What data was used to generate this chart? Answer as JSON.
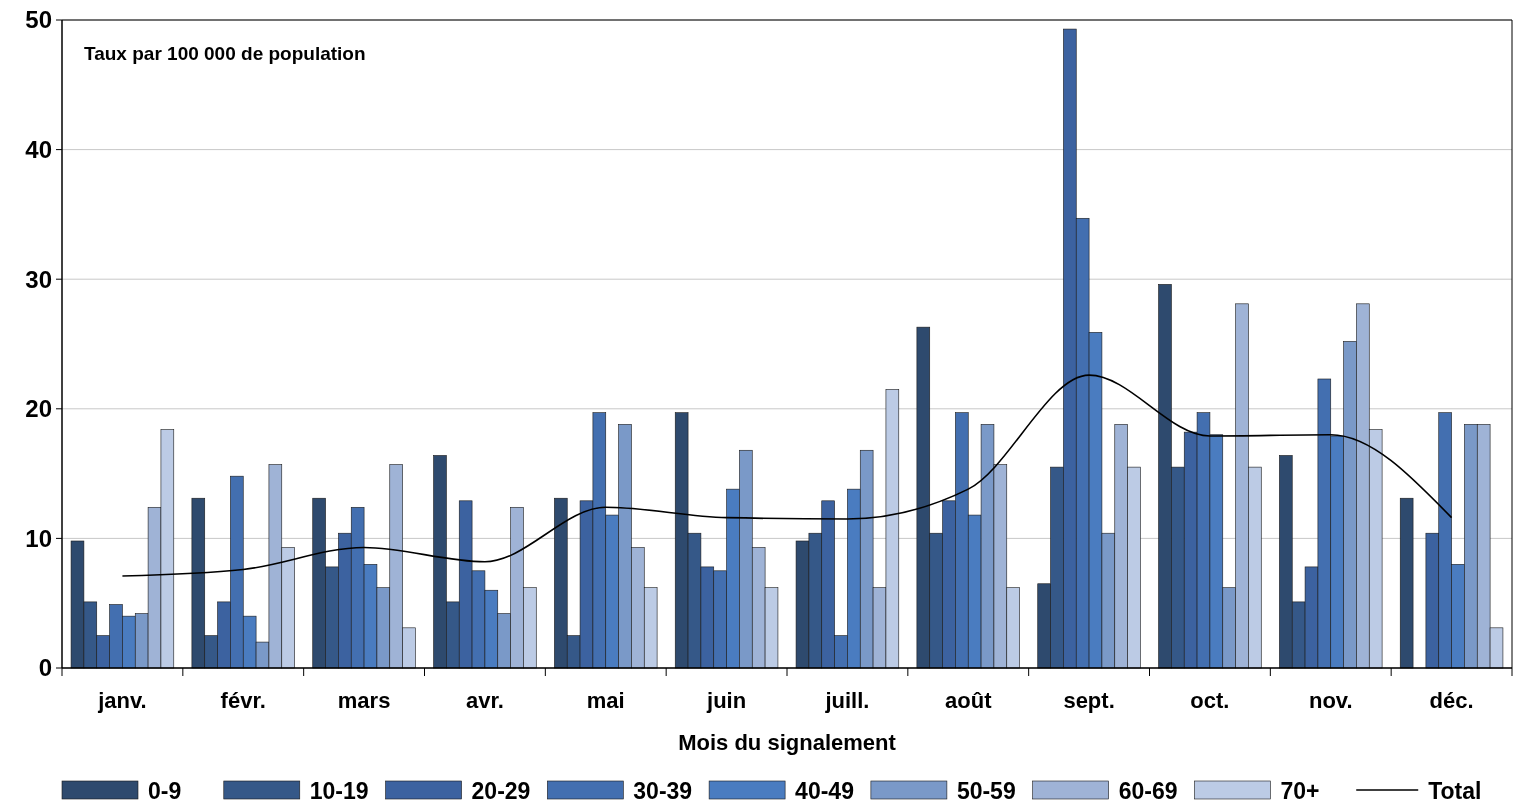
{
  "chart_data": {
    "type": "bar",
    "xlabel": "Mois du signalement",
    "annotations": [
      "Taux par 100 000 de population"
    ],
    "categories": [
      "janv.",
      "févr.",
      "mars",
      "avr.",
      "mai",
      "juin",
      "juill.",
      "août",
      "sept.",
      "oct.",
      "nov.",
      "déc."
    ],
    "ylim": [
      0,
      50
    ],
    "yticks": [
      0,
      10,
      20,
      30,
      40,
      50
    ],
    "grid": "y",
    "legend": "bottom",
    "series": [
      {
        "name": "0-9",
        "color": "#2e4a6e",
        "values": [
          9.8,
          13.1,
          13.1,
          16.4,
          13.1,
          19.7,
          9.8,
          26.3,
          6.5,
          29.6,
          16.4,
          13.1
        ]
      },
      {
        "name": "10-19",
        "color": "#355888",
        "values": [
          5.1,
          2.5,
          7.8,
          5.1,
          2.5,
          10.4,
          10.4,
          10.4,
          15.5,
          15.5,
          5.1,
          null
        ]
      },
      {
        "name": "20-29",
        "color": "#3c62a0",
        "values": [
          2.5,
          5.1,
          10.4,
          12.9,
          12.9,
          7.8,
          12.9,
          12.9,
          49.3,
          18.2,
          7.8,
          10.4
        ]
      },
      {
        "name": "30-39",
        "color": "#436fb0",
        "values": [
          4.9,
          14.8,
          12.4,
          7.5,
          19.7,
          7.5,
          2.5,
          19.7,
          34.7,
          19.7,
          22.3,
          19.7
        ]
      },
      {
        "name": "40-49",
        "color": "#4a7cc0",
        "values": [
          4.0,
          4.0,
          8.0,
          6.0,
          11.8,
          13.8,
          13.8,
          11.8,
          25.9,
          18.0,
          17.9,
          8.0
        ]
      },
      {
        "name": "50-59",
        "color": "#7a99c8",
        "values": [
          4.2,
          2.0,
          6.2,
          4.2,
          18.8,
          16.8,
          16.8,
          18.8,
          10.4,
          6.2,
          25.2,
          18.8
        ]
      },
      {
        "name": "60-69",
        "color": "#9fb3d6",
        "values": [
          12.4,
          15.7,
          15.7,
          12.4,
          9.3,
          9.3,
          6.2,
          15.7,
          18.8,
          28.1,
          28.1,
          18.8
        ]
      },
      {
        "name": "70+",
        "color": "#bccbe5",
        "values": [
          18.4,
          9.3,
          3.1,
          6.2,
          6.2,
          6.2,
          21.5,
          6.2,
          15.5,
          15.5,
          18.4,
          3.1
        ]
      },
      {
        "name": "Total",
        "type": "line",
        "color": "#000000",
        "values": [
          7.1,
          7.6,
          9.3,
          8.2,
          12.4,
          11.6,
          11.5,
          13.8,
          22.6,
          17.9,
          18.0,
          11.6
        ]
      }
    ]
  }
}
